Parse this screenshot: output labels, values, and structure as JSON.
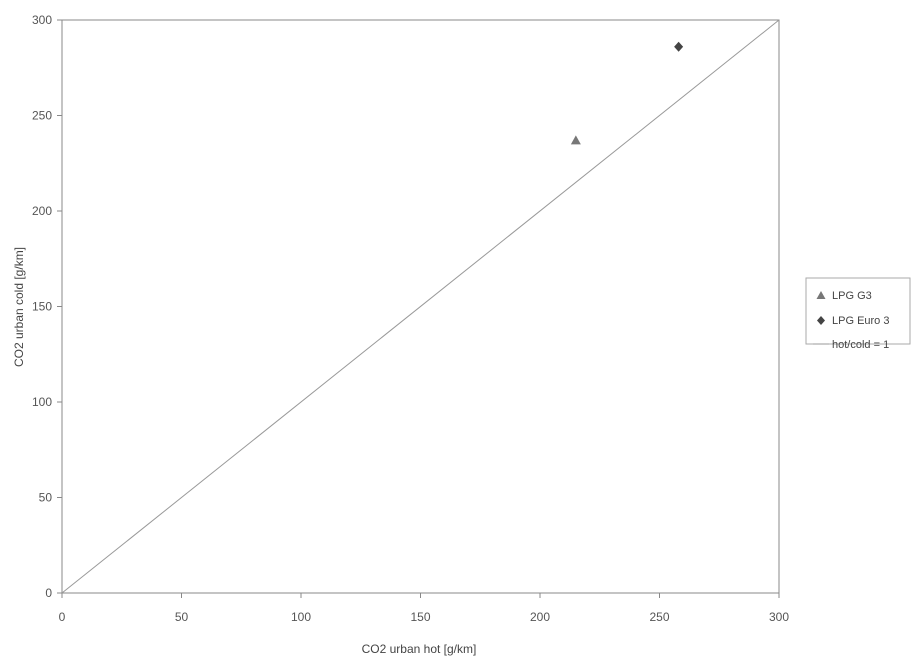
{
  "chart_data": {
    "type": "scatter",
    "xlabel": "CO2 urban hot [g/km]",
    "ylabel": "CO2 urban cold [g/km]",
    "xlim": [
      0,
      300
    ],
    "ylim": [
      0,
      300
    ],
    "x_ticks": [
      0,
      50,
      100,
      150,
      200,
      250,
      300
    ],
    "y_ticks": [
      0,
      50,
      100,
      150,
      200,
      250,
      300
    ],
    "grid": false,
    "legend_position": "right",
    "series": [
      {
        "name": "LPG G3",
        "marker": "triangle",
        "color": "#777777",
        "points": [
          {
            "x": 215,
            "y": 237
          }
        ]
      },
      {
        "name": "LPG Euro 3",
        "marker": "diamond",
        "color": "#444444",
        "points": [
          {
            "x": 258,
            "y": 286
          }
        ]
      }
    ],
    "reference_line": {
      "name": "hot/cold = 1",
      "color": "#999999",
      "points": [
        {
          "x": 0,
          "y": 0
        },
        {
          "x": 300,
          "y": 300
        }
      ]
    }
  }
}
